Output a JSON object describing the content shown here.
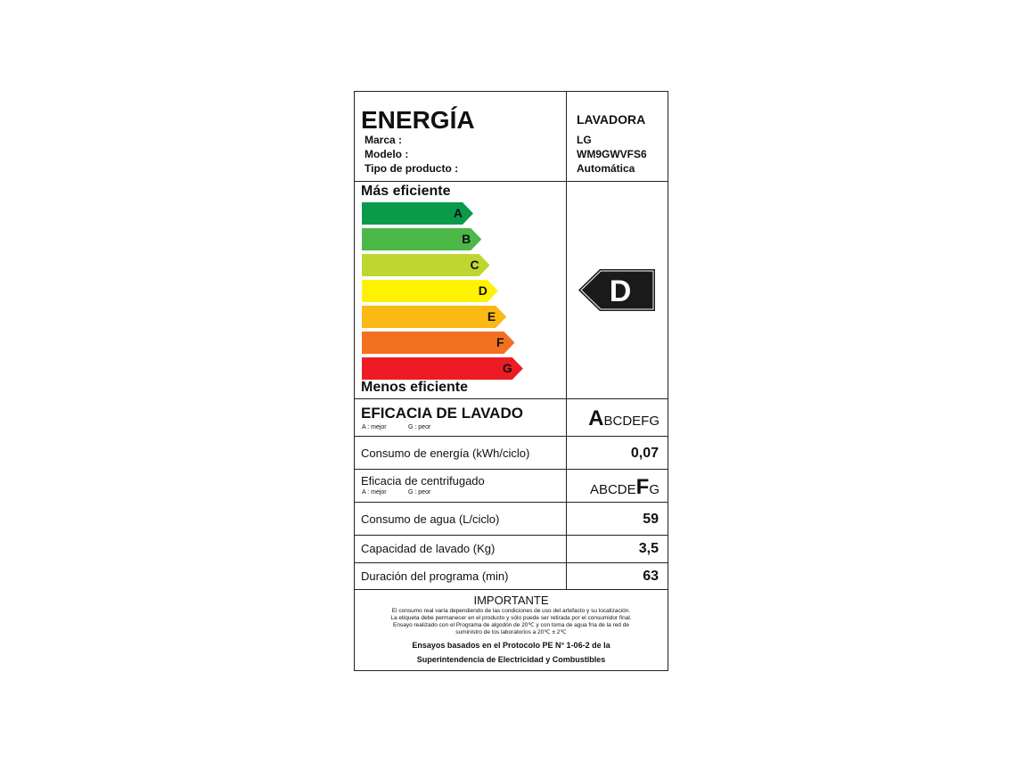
{
  "header": {
    "title": "ENERGÍA",
    "fields": [
      "Marca :",
      "Modelo :",
      "Tipo de producto :"
    ],
    "product": "LAVADORA",
    "values": [
      "LG",
      "WM9GWVFS6",
      "Automática"
    ]
  },
  "scale": {
    "top_label": "Más eficiente",
    "bottom_label": "Menos eficiente",
    "classes": [
      {
        "letter": "A",
        "color": "#0a9a4a"
      },
      {
        "letter": "B",
        "color": "#4cb848"
      },
      {
        "letter": "C",
        "color": "#bfd630"
      },
      {
        "letter": "D",
        "color": "#fff200"
      },
      {
        "letter": "E",
        "color": "#fdb913"
      },
      {
        "letter": "F",
        "color": "#f37021"
      },
      {
        "letter": "G",
        "color": "#ed1c24"
      }
    ],
    "rating": "D",
    "rating_color": "#1a1a1a"
  },
  "wash": {
    "title": "EFICACIA DE LAVADO",
    "legend_best": "A : mejor",
    "legend_worst": "G : peor",
    "scale_selected": "A",
    "scale_rest": "BCDEFG"
  },
  "energy": {
    "label": "Consumo de energía (kWh/ciclo)",
    "value": "0,07"
  },
  "spin": {
    "title": "Eficacia de centrifugado",
    "legend_best": "A : mejor",
    "legend_worst": "G : peor",
    "before": "ABCDE",
    "selected": "F",
    "after": "G"
  },
  "water": {
    "label": "Consumo de agua (L/ciclo)",
    "value": "59"
  },
  "capacity": {
    "label": "Capacidad de lavado (Kg)",
    "value": "3,5"
  },
  "duration": {
    "label": "Duración del programa (min)",
    "value": "63"
  },
  "important": {
    "title": "IMPORTANTE",
    "lines": [
      "El consumo real varía dependiendo de las condiciones de uso del artefacto y su localización.",
      "La etiqueta debe permanecer en el producto y sólo puede ser retirada por el consumidor final.",
      "Ensayo realizado con el Programa de algodón de 20℃ y con toma de agua fría de la red de",
      "suministro de los laboratorios a 20℃ ± 2℃"
    ],
    "protocol": [
      "Ensayos basados en el Protocolo PE N° 1-06-2 de la",
      "Superintendencia de Electricidad y Combustibles"
    ]
  }
}
